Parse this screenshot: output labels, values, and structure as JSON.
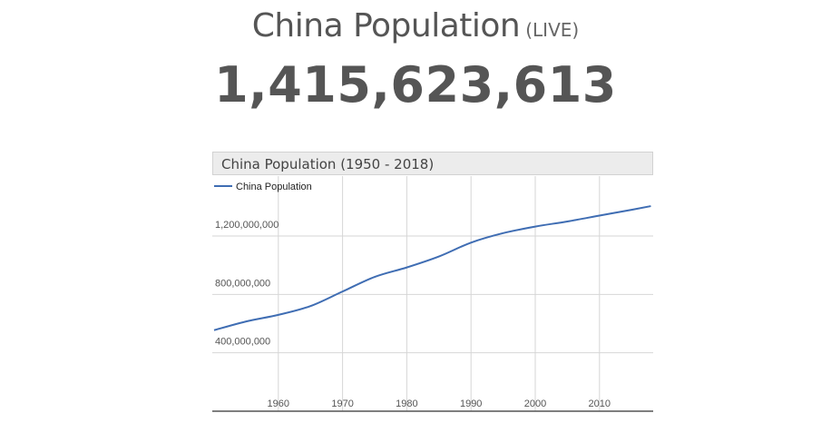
{
  "header": {
    "title": "China Population",
    "live_label": "(LIVE)",
    "counter": "1,415,623,613"
  },
  "colors": {
    "series_line": "#3f6db3",
    "grid": "#d6d6d6",
    "axis": "#555555",
    "text": "#555555"
  },
  "chart_data": {
    "type": "line",
    "title": "China Population (1950 - 2018)",
    "xlabel": "",
    "ylabel": "",
    "legend_position": "top-left",
    "grid": true,
    "xlim": [
      1950,
      2018
    ],
    "ylim": [
      0,
      1500000000
    ],
    "x_ticks": [
      1960,
      1970,
      1980,
      1990,
      2000,
      2010
    ],
    "x_tick_labels": [
      "1960",
      "1970",
      "1980",
      "1990",
      "2000",
      "2010"
    ],
    "y_ticks": [
      400000000,
      800000000,
      1200000000
    ],
    "y_tick_labels": [
      "400,000,000",
      "800,000,000",
      "1,200,000,000"
    ],
    "series": [
      {
        "name": "China Population",
        "x": [
          1950,
          1955,
          1960,
          1965,
          1970,
          1975,
          1980,
          1985,
          1990,
          1995,
          2000,
          2005,
          2010,
          2015,
          2018
        ],
        "values": [
          555000000,
          615000000,
          660000000,
          720000000,
          820000000,
          920000000,
          985000000,
          1060000000,
          1155000000,
          1220000000,
          1265000000,
          1300000000,
          1340000000,
          1380000000,
          1405000000
        ]
      }
    ]
  }
}
